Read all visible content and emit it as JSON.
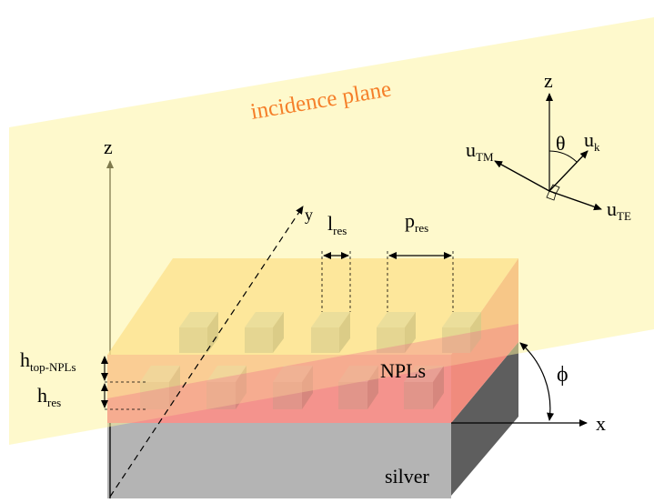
{
  "figure": {
    "plane_label": "incidence plane",
    "materials": {
      "layer": "NPLs",
      "substrate": "silver"
    },
    "axes": {
      "x": "x",
      "y": "y",
      "z": "z"
    },
    "dimensions": {
      "l_base": "l",
      "l_sub": "res",
      "p_base": "p",
      "p_sub": "res",
      "h_top_base": "h",
      "h_top_sub": "top-NPLs",
      "h_res_base": "h",
      "h_res_sub": "res"
    },
    "angles": {
      "phi": "ϕ",
      "theta": "θ"
    },
    "vectors": {
      "z": "z",
      "k_base": "u",
      "k_sub": "k",
      "tm_base": "u",
      "tm_sub": "TM",
      "te_base": "u",
      "te_sub": "TE"
    },
    "colors": {
      "plane": "#fdf6b6",
      "npl_layer": "#f6a0a0",
      "top_layer": "#f9b77e",
      "silver": "#b3b3b3",
      "silver_side": "#5e5e5e",
      "plane_label": "#f57f29"
    }
  }
}
